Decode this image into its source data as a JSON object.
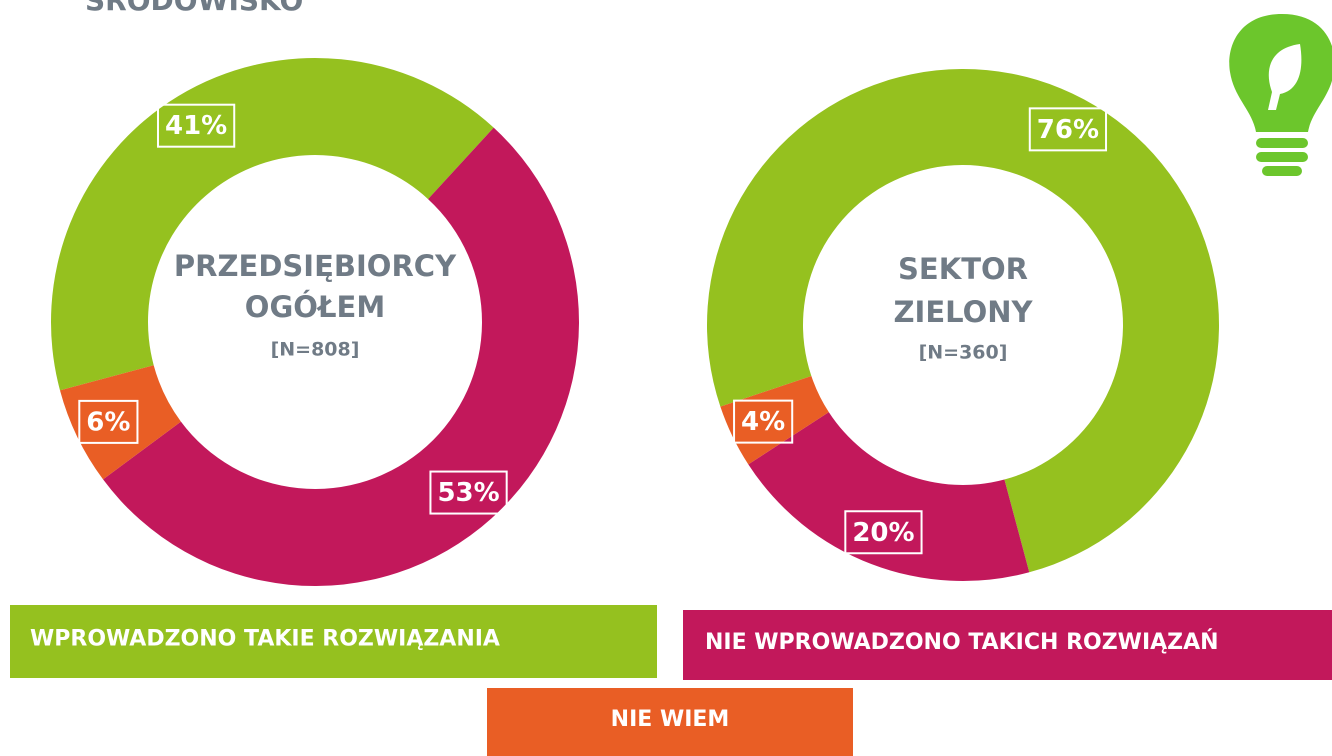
{
  "chart_data": {
    "type": "donut",
    "title": "ŚRODOWISKO",
    "categories": [
      "WPROWADZONO TAKIE ROZWIĄZANIA",
      "NIE WPROWADZONO TAKICH ROZWIĄZAŃ",
      "NIE WIEM"
    ],
    "colors": [
      "#95c11f",
      "#c2185b",
      "#e95e25"
    ],
    "charts": [
      {
        "title": [
          "PRZEDSIĘBIORCY",
          "OGÓŁEM"
        ],
        "note": "[N=808]",
        "values": [
          41,
          53,
          6
        ],
        "value_labels": [
          "41%",
          "53%",
          "6%"
        ]
      },
      {
        "title": [
          "SEKTOR",
          "ZIELONY"
        ],
        "note": "[N=360]",
        "values": [
          76,
          20,
          4
        ],
        "value_labels": [
          "76%",
          "20%",
          "4%"
        ]
      }
    ]
  }
}
